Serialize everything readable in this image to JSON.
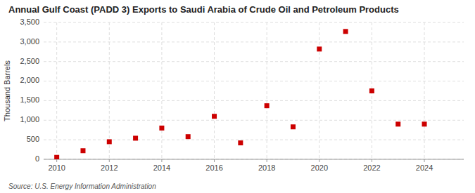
{
  "chart_data": {
    "type": "scatter",
    "title": "Annual Gulf Coast (PADD 3) Exports to Saudi Arabia of Crude Oil and Petroleum Products",
    "ylabel": "Thousand Barrels",
    "annotations": [
      "Source: U.S. Energy Information Administration"
    ],
    "x": [
      2010,
      2011,
      2012,
      2013,
      2014,
      2015,
      2016,
      2017,
      2018,
      2019,
      2020,
      2021,
      2022,
      2023,
      2024
    ],
    "values": [
      50,
      220,
      450,
      540,
      800,
      580,
      1100,
      420,
      1370,
      830,
      2820,
      3270,
      1750,
      900,
      900
    ],
    "color": "#cc0000",
    "marker": "square",
    "xlim": [
      2009.5,
      2025.5
    ],
    "ylim": [
      0,
      3500
    ],
    "xticks": [
      2010,
      2012,
      2014,
      2016,
      2018,
      2020,
      2022,
      2024
    ],
    "yticks": [
      0,
      500,
      {
        "value": 1000,
        "label": "1,000"
      },
      {
        "value": 1500,
        "label": "1,500"
      },
      {
        "value": 2000,
        "label": "2,000"
      },
      {
        "value": 2500,
        "label": "2,500"
      },
      {
        "value": 3000,
        "label": "3,000"
      },
      {
        "value": 3500,
        "label": "3,500"
      }
    ],
    "grid": true
  }
}
